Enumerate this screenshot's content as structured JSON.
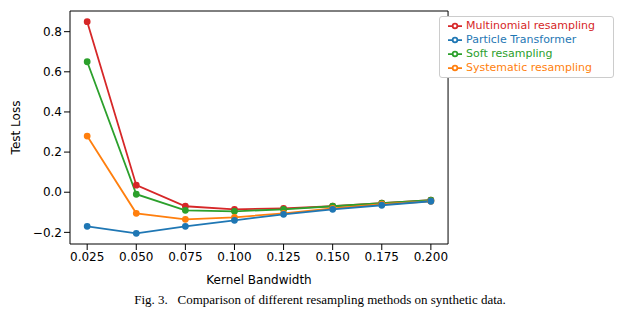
{
  "chart_data": {
    "type": "line",
    "caption": "Fig. 3.   Comparison of different resampling methods on synthetic data.",
    "x_label": "Kernel Bandwidth",
    "y_label": "Test Loss",
    "x": [
      0.025,
      0.05,
      0.075,
      0.1,
      0.125,
      0.15,
      0.175,
      0.2
    ],
    "xlim": [
      0.01625,
      0.20875
    ],
    "xticks": [
      0.025,
      {
        "value": 0.05,
        "label": "0.050"
      },
      0.075,
      {
        "value": 0.1,
        "label": "0.100"
      },
      0.125,
      {
        "value": 0.15,
        "label": "0.150"
      },
      0.175,
      {
        "value": 0.2,
        "label": "0.200"
      }
    ],
    "ylim": [
      -0.258,
      0.903
    ],
    "yticks": [
      {
        "value": -0.2,
        "label": "−0.2"
      },
      {
        "value": 0,
        "label": "0.0"
      },
      0.2,
      0.4,
      0.6,
      0.8
    ],
    "grid": false,
    "legend": "upper right",
    "series": [
      {
        "name": "Multinomial resampling",
        "color": "#d62728",
        "marker": "o",
        "values": [
          0.85,
          0.035,
          -0.07,
          -0.085,
          -0.08,
          -0.07,
          -0.055,
          -0.04
        ]
      },
      {
        "name": "Soft resampling",
        "color": "#2ca02c",
        "marker": "o",
        "values": [
          0.65,
          -0.01,
          -0.09,
          -0.095,
          -0.085,
          -0.07,
          -0.055,
          -0.04
        ]
      },
      {
        "name": "Systematic resampling",
        "color": "#ff7f0e",
        "marker": "o",
        "values": [
          0.28,
          -0.105,
          -0.135,
          -0.125,
          -0.105,
          -0.08,
          -0.06,
          -0.045
        ]
      },
      {
        "name": "Particle Transformer",
        "color": "#1f77b4",
        "marker": "o",
        "values": [
          -0.17,
          -0.205,
          -0.17,
          -0.14,
          -0.11,
          -0.085,
          -0.065,
          -0.045
        ]
      }
    ]
  }
}
